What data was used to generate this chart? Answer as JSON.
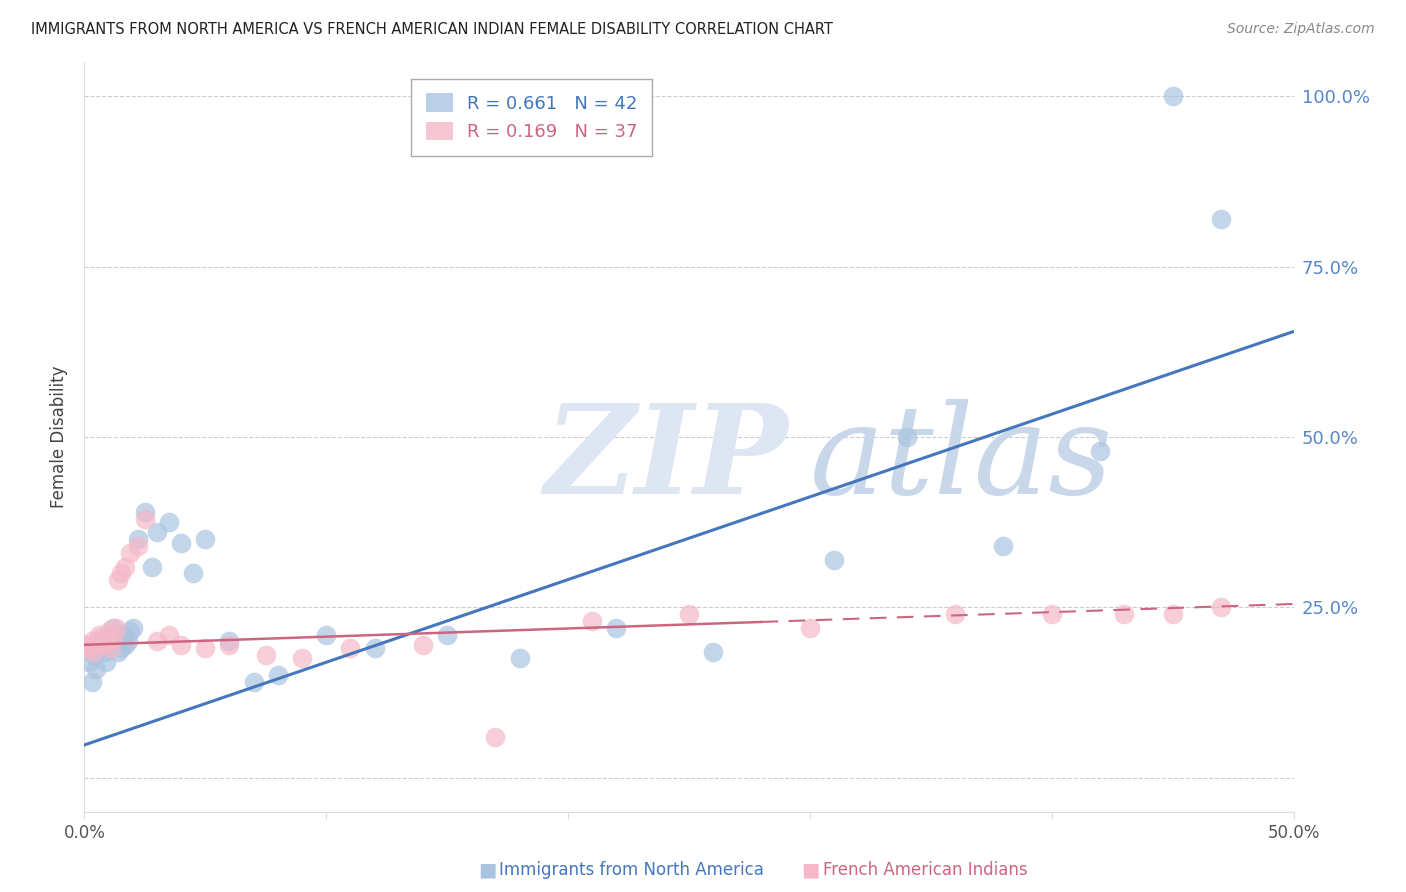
{
  "title": "IMMIGRANTS FROM NORTH AMERICA VS FRENCH AMERICAN INDIAN FEMALE DISABILITY CORRELATION CHART",
  "source": "Source: ZipAtlas.com",
  "ylabel": "Female Disability",
  "legend_label1": "Immigrants from North America",
  "legend_label2": "French American Indians",
  "r1": 0.661,
  "n1": 42,
  "r2": 0.169,
  "n2": 37,
  "blue_fill": "#aac4e0",
  "pink_fill": "#f5b8c8",
  "blue_line": "#4477bb",
  "pink_line": "#cc6680",
  "xmin": 0.0,
  "xmax": 0.5,
  "ymin": -0.05,
  "ymax": 1.05,
  "watermark": "ZIPatlas",
  "blue_scatter_x": [
    0.002,
    0.003,
    0.004,
    0.005,
    0.006,
    0.007,
    0.008,
    0.009,
    0.01,
    0.011,
    0.012,
    0.013,
    0.014,
    0.015,
    0.016,
    0.017,
    0.018,
    0.019,
    0.02,
    0.022,
    0.025,
    0.028,
    0.03,
    0.035,
    0.04,
    0.045,
    0.05,
    0.06,
    0.07,
    0.08,
    0.1,
    0.12,
    0.15,
    0.18,
    0.22,
    0.26,
    0.31,
    0.34,
    0.38,
    0.42,
    0.45,
    0.47
  ],
  "blue_scatter_y": [
    0.17,
    0.14,
    0.18,
    0.16,
    0.19,
    0.2,
    0.185,
    0.17,
    0.195,
    0.21,
    0.22,
    0.2,
    0.185,
    0.19,
    0.21,
    0.195,
    0.2,
    0.215,
    0.22,
    0.35,
    0.39,
    0.31,
    0.36,
    0.375,
    0.345,
    0.3,
    0.35,
    0.2,
    0.14,
    0.15,
    0.21,
    0.19,
    0.21,
    0.175,
    0.22,
    0.185,
    0.32,
    0.5,
    0.34,
    0.48,
    1.0,
    0.82
  ],
  "pink_scatter_x": [
    0.001,
    0.002,
    0.003,
    0.004,
    0.005,
    0.006,
    0.007,
    0.008,
    0.009,
    0.01,
    0.011,
    0.012,
    0.013,
    0.014,
    0.015,
    0.017,
    0.019,
    0.022,
    0.025,
    0.03,
    0.035,
    0.04,
    0.05,
    0.06,
    0.075,
    0.09,
    0.11,
    0.14,
    0.17,
    0.21,
    0.25,
    0.3,
    0.36,
    0.4,
    0.43,
    0.45,
    0.47
  ],
  "pink_scatter_y": [
    0.195,
    0.19,
    0.2,
    0.185,
    0.195,
    0.21,
    0.205,
    0.195,
    0.2,
    0.215,
    0.19,
    0.205,
    0.22,
    0.29,
    0.3,
    0.31,
    0.33,
    0.34,
    0.38,
    0.2,
    0.21,
    0.195,
    0.19,
    0.195,
    0.18,
    0.175,
    0.19,
    0.195,
    0.06,
    0.23,
    0.24,
    0.22,
    0.24,
    0.24,
    0.24,
    0.24,
    0.25
  ]
}
